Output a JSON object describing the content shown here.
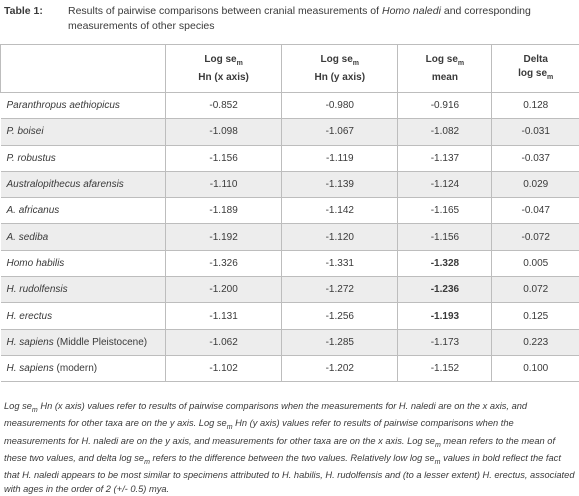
{
  "label": "Table 1:",
  "caption": [
    "Results of pairwise comparisons between cranial measurements of ",
    "Homo naledi",
    " and corresponding measurements of other species"
  ],
  "header": [
    {
      "top": "Log se",
      "sub": "m",
      "bottom": "Hn (x axis)"
    },
    {
      "top": "Log se",
      "sub": "m",
      "bottom": "Hn (y axis)"
    },
    {
      "top": "Log se",
      "sub": "m",
      "bottom": "mean"
    },
    {
      "top": "Delta",
      "bottom": "log se",
      "sub": "m"
    }
  ],
  "rows": [
    {
      "name": [
        "Paranthropus aethiopicus"
      ],
      "values": [
        "-0.852",
        "-0.980",
        "-0.916",
        "0.128"
      ]
    },
    {
      "name": [
        "P. boisei"
      ],
      "values": [
        "-1.098",
        "-1.067",
        "-1.082",
        "-0.031"
      ]
    },
    {
      "name": [
        "P. robustus"
      ],
      "values": [
        "-1.156",
        "-1.119",
        "-1.137",
        "-0.037"
      ]
    },
    {
      "name": [
        "Australopithecus afarensis"
      ],
      "values": [
        "-1.110",
        "-1.139",
        "-1.124",
        "0.029"
      ]
    },
    {
      "name": [
        "A. africanus"
      ],
      "values": [
        "-1.189",
        "-1.142",
        "-1.165",
        "-0.047"
      ]
    },
    {
      "name": [
        "A. sediba"
      ],
      "values": [
        "-1.192",
        "-1.120",
        "-1.156",
        "-0.072"
      ]
    },
    {
      "name": [
        "Homo habilis"
      ],
      "values": [
        "-1.326",
        "-1.331",
        "-1.328",
        "0.005"
      ],
      "bold_mean": true
    },
    {
      "name": [
        "H. rudolfensis"
      ],
      "values": [
        "-1.200",
        "-1.272",
        "-1.236",
        "0.072"
      ],
      "bold_mean": true
    },
    {
      "name": [
        "H. erectus"
      ],
      "values": [
        "-1.131",
        "-1.256",
        "-1.193",
        "0.125"
      ],
      "bold_mean": true
    },
    {
      "name": [
        "H. sapiens",
        " (Middle Pleistocene)"
      ],
      "values": [
        "-1.062",
        "-1.285",
        "-1.173",
        "0.223"
      ]
    },
    {
      "name": [
        "H. sapiens",
        " (modern)"
      ],
      "values": [
        "-1.102",
        "-1.202",
        "-1.152",
        "0.100"
      ]
    }
  ],
  "footnote": [
    "Log se",
    "m",
    " Hn (x axis) values refer to results of pairwise comparisons when the measurements for H. naledi are on the x axis, and measurements for other taxa are on the y axis. Log se",
    "m",
    " Hn (y axis) values refer to results of pairwise comparisons when the measurements for H. naledi are on the y axis, and measurements for other taxa are on the x axis. Log se",
    "m",
    " mean refers to the mean of these two values, and delta log se",
    "m",
    " refers to the difference between the two values. Relatively low log se",
    "m",
    " values in bold reflect the fact that H. naledi appears to be most similar to specimens attributed to H. habilis, H. rudolfensis and (to a lesser extent) H. erectus, associated with ages in the order of 2 (+/- 0.5) mya."
  ]
}
